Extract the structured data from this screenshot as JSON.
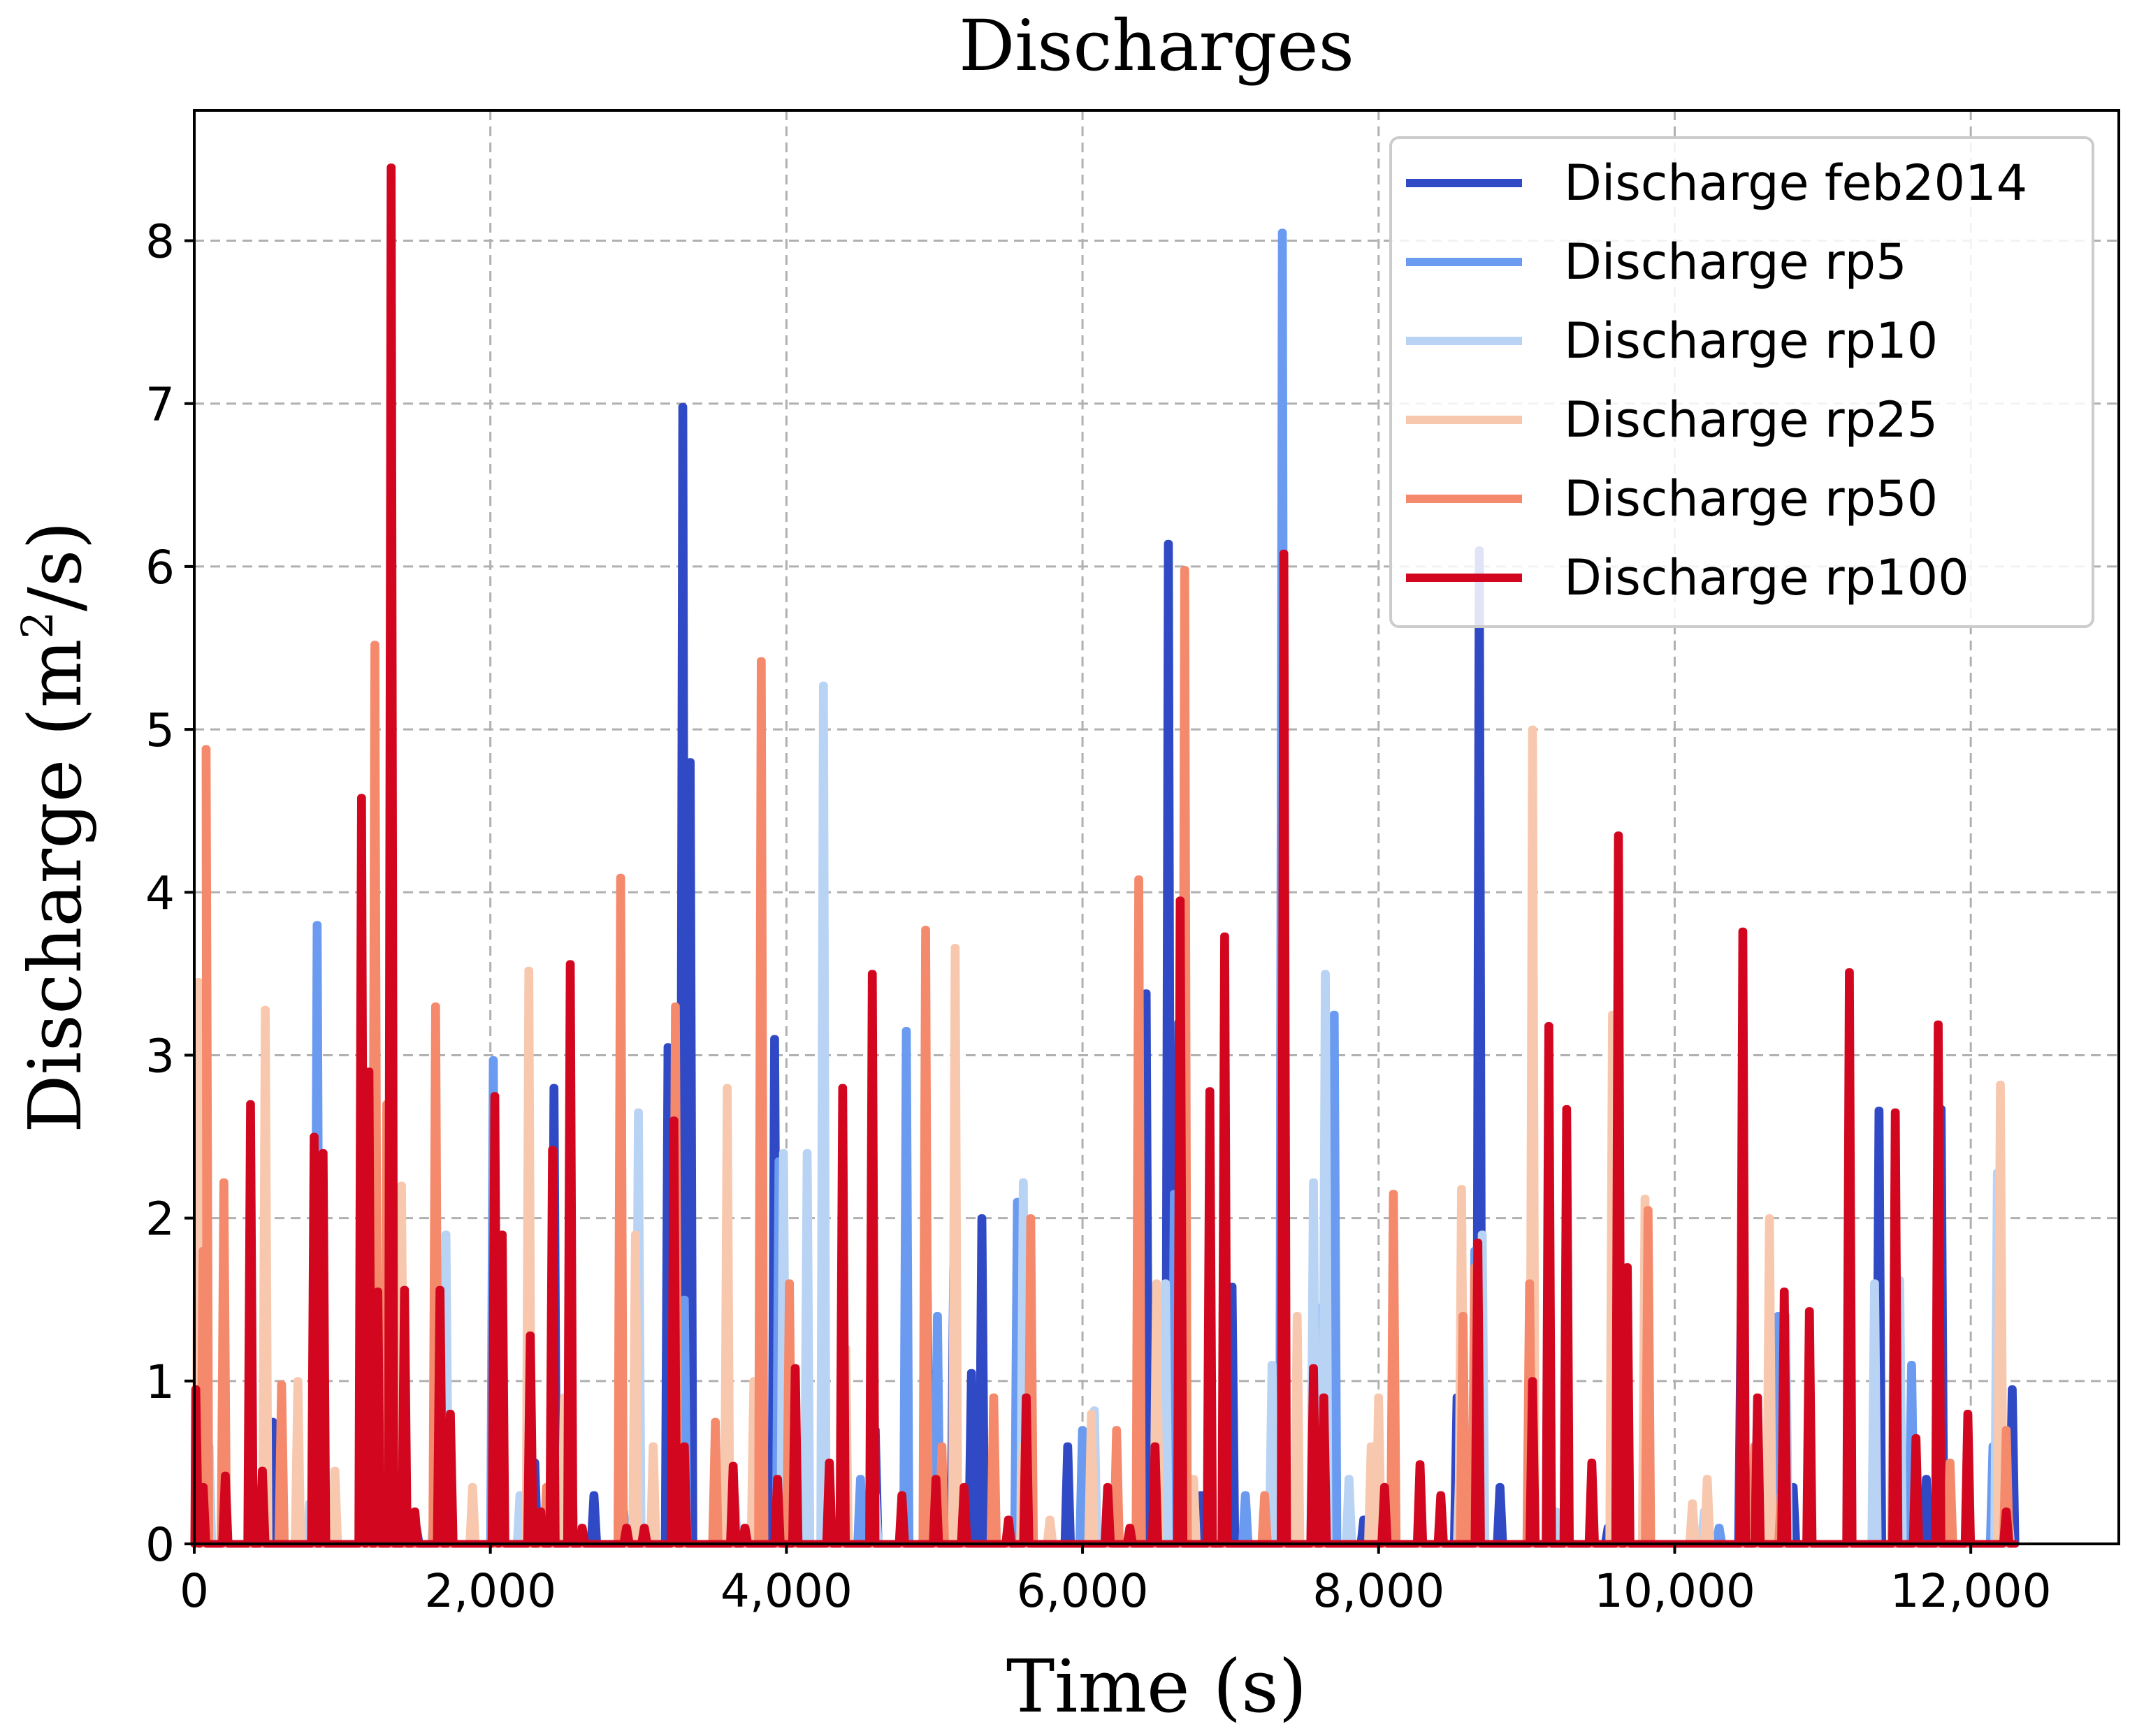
{
  "chart_data": {
    "type": "line",
    "title": "Discharges",
    "xlabel": "Time (s)",
    "ylabel_main": "Discharge (m",
    "ylabel_sup": "2",
    "ylabel_end": "/s)",
    "xlim": [
      0,
      13000
    ],
    "ylim": [
      0,
      8.8
    ],
    "x_ticks": [
      0,
      2000,
      4000,
      6000,
      8000,
      10000,
      12000
    ],
    "x_tick_labels": [
      "0",
      "2,000",
      "4,000",
      "6,000",
      "8,000",
      "10,000",
      "12,000"
    ],
    "y_ticks": [
      0,
      1,
      2,
      3,
      4,
      5,
      6,
      7,
      8
    ],
    "y_tick_labels": [
      "0",
      "1",
      "2",
      "3",
      "4",
      "5",
      "6",
      "7",
      "8"
    ],
    "grid": true,
    "legend_position": "top-right",
    "series": [
      {
        "name": "Discharge feb2014",
        "color": "#3049c4",
        "spikes": [
          [
            20,
            0.35
          ],
          [
            530,
            0.75
          ],
          [
            1130,
            0.35
          ],
          [
            1500,
            0.1
          ],
          [
            2060,
            0.3
          ],
          [
            2300,
            0.5
          ],
          [
            2430,
            2.8
          ],
          [
            2700,
            0.3
          ],
          [
            3000,
            1.05
          ],
          [
            3200,
            3.05
          ],
          [
            3300,
            6.98
          ],
          [
            3350,
            4.8
          ],
          [
            3920,
            3.1
          ],
          [
            4120,
            0.5
          ],
          [
            4600,
            0.7
          ],
          [
            4950,
            1.6
          ],
          [
            5000,
            1.05
          ],
          [
            5130,
            1.7
          ],
          [
            5250,
            1.05
          ],
          [
            5320,
            2.0
          ],
          [
            5630,
            1.3
          ],
          [
            5900,
            0.6
          ],
          [
            6430,
            3.38
          ],
          [
            6580,
            6.14
          ],
          [
            6650,
            3.2
          ],
          [
            6800,
            0.3
          ],
          [
            7010,
            1.58
          ],
          [
            7320,
            0.85
          ],
          [
            7650,
            0.6
          ],
          [
            7900,
            0.15
          ],
          [
            8530,
            0.9
          ],
          [
            8680,
            6.1
          ],
          [
            8820,
            0.35
          ],
          [
            9550,
            0.1
          ],
          [
            10450,
            1.5
          ],
          [
            10800,
            0.35
          ],
          [
            11380,
            2.66
          ],
          [
            11700,
            0.4
          ],
          [
            11800,
            2.67
          ],
          [
            12280,
            0.95
          ]
        ]
      },
      {
        "name": "Discharge rp5",
        "color": "#6a9bf0",
        "spikes": [
          [
            40,
            0.5
          ],
          [
            830,
            3.8
          ],
          [
            1200,
            0.45
          ],
          [
            1350,
            0.3
          ],
          [
            2020,
            2.97
          ],
          [
            2390,
            0.3
          ],
          [
            2900,
            0.2
          ],
          [
            3310,
            1.5
          ],
          [
            3950,
            2.35
          ],
          [
            4500,
            0.4
          ],
          [
            4810,
            3.15
          ],
          [
            5020,
            1.4
          ],
          [
            5560,
            2.1
          ],
          [
            6000,
            0.7
          ],
          [
            6200,
            0.1
          ],
          [
            6620,
            2.15
          ],
          [
            7100,
            0.3
          ],
          [
            7350,
            8.05
          ],
          [
            7600,
            1.45
          ],
          [
            7700,
            3.25
          ],
          [
            8650,
            1.8
          ],
          [
            9600,
            2.2
          ],
          [
            9800,
            0.7
          ],
          [
            10300,
            0.1
          ],
          [
            10700,
            1.4
          ],
          [
            11600,
            1.1
          ],
          [
            12150,
            0.6
          ]
        ]
      },
      {
        "name": "Discharge rp10",
        "color": "#b8d3f4",
        "spikes": [
          [
            100,
            0.6
          ],
          [
            780,
            0.25
          ],
          [
            1620,
            0.2
          ],
          [
            1700,
            1.9
          ],
          [
            2200,
            0.3
          ],
          [
            2550,
            0.4
          ],
          [
            3000,
            2.65
          ],
          [
            3650,
            0.3
          ],
          [
            3980,
            2.4
          ],
          [
            4140,
            2.4
          ],
          [
            4250,
            5.27
          ],
          [
            4600,
            0.3
          ],
          [
            5600,
            2.22
          ],
          [
            6080,
            0.82
          ],
          [
            6560,
            1.6
          ],
          [
            7280,
            1.1
          ],
          [
            7560,
            2.22
          ],
          [
            7640,
            3.5
          ],
          [
            7800,
            0.4
          ],
          [
            8550,
            0.5
          ],
          [
            8700,
            1.9
          ],
          [
            9200,
            0.2
          ],
          [
            10200,
            0.2
          ],
          [
            10750,
            1.4
          ],
          [
            11350,
            1.6
          ],
          [
            11520,
            1.62
          ],
          [
            12180,
            2.28
          ],
          [
            12250,
            0.2
          ]
        ]
      },
      {
        "name": "Discharge rp25",
        "color": "#f8c8ae",
        "spikes": [
          [
            30,
            3.45
          ],
          [
            480,
            3.28
          ],
          [
            700,
            1.0
          ],
          [
            950,
            0.45
          ],
          [
            1400,
            2.2
          ],
          [
            1880,
            0.35
          ],
          [
            2260,
            3.52
          ],
          [
            2500,
            0.9
          ],
          [
            2980,
            1.9
          ],
          [
            3100,
            0.6
          ],
          [
            3600,
            2.8
          ],
          [
            3780,
            1.0
          ],
          [
            4400,
            1.2
          ],
          [
            5140,
            3.66
          ],
          [
            5600,
            0.6
          ],
          [
            5780,
            0.15
          ],
          [
            6060,
            0.8
          ],
          [
            6500,
            1.6
          ],
          [
            6750,
            0.4
          ],
          [
            7450,
            1.4
          ],
          [
            7950,
            0.6
          ],
          [
            8000,
            0.9
          ],
          [
            8560,
            2.18
          ],
          [
            9040,
            5.0
          ],
          [
            9580,
            3.25
          ],
          [
            9800,
            2.12
          ],
          [
            10120,
            0.25
          ],
          [
            10220,
            0.4
          ],
          [
            10640,
            2.0
          ],
          [
            11480,
            1.3
          ],
          [
            12200,
            2.82
          ]
        ]
      },
      {
        "name": "Discharge rp50",
        "color": "#f4896b",
        "spikes": [
          [
            60,
            1.8
          ],
          [
            80,
            4.88
          ],
          [
            200,
            2.22
          ],
          [
            590,
            0.98
          ],
          [
            1140,
            0.8
          ],
          [
            1220,
            5.52
          ],
          [
            1300,
            2.7
          ],
          [
            1630,
            3.3
          ],
          [
            2380,
            0.35
          ],
          [
            2880,
            4.09
          ],
          [
            3250,
            3.3
          ],
          [
            3520,
            0.75
          ],
          [
            3830,
            5.42
          ],
          [
            4020,
            1.6
          ],
          [
            4940,
            3.77
          ],
          [
            5050,
            0.6
          ],
          [
            5400,
            0.9
          ],
          [
            5650,
            2.0
          ],
          [
            6230,
            0.7
          ],
          [
            6380,
            4.08
          ],
          [
            6690,
            5.98
          ],
          [
            7230,
            0.3
          ],
          [
            7580,
            0.3
          ],
          [
            8100,
            2.15
          ],
          [
            8570,
            1.4
          ],
          [
            8650,
            1.7
          ],
          [
            9020,
            1.6
          ],
          [
            9820,
            2.05
          ],
          [
            10540,
            0.6
          ],
          [
            10720,
            0.3
          ],
          [
            11860,
            0.5
          ],
          [
            12240,
            0.7
          ]
        ]
      },
      {
        "name": "Discharge rp100",
        "color": "#d2071f",
        "spikes": [
          [
            10,
            0.95
          ],
          [
            60,
            0.35
          ],
          [
            210,
            0.42
          ],
          [
            380,
            2.7
          ],
          [
            460,
            0.45
          ],
          [
            810,
            2.5
          ],
          [
            870,
            2.4
          ],
          [
            1130,
            4.58
          ],
          [
            1180,
            2.9
          ],
          [
            1240,
            1.55
          ],
          [
            1330,
            8.45
          ],
          [
            1420,
            1.56
          ],
          [
            1490,
            0.2
          ],
          [
            1660,
            1.56
          ],
          [
            1730,
            0.8
          ],
          [
            2030,
            2.75
          ],
          [
            2080,
            1.9
          ],
          [
            2270,
            1.28
          ],
          [
            2340,
            0.2
          ],
          [
            2420,
            2.42
          ],
          [
            2540,
            3.56
          ],
          [
            2620,
            0.1
          ],
          [
            2920,
            0.1
          ],
          [
            3040,
            0.1
          ],
          [
            3240,
            2.6
          ],
          [
            3310,
            0.6
          ],
          [
            3640,
            0.48
          ],
          [
            3720,
            0.1
          ],
          [
            3940,
            0.4
          ],
          [
            4060,
            1.08
          ],
          [
            4290,
            0.5
          ],
          [
            4380,
            2.8
          ],
          [
            4580,
            3.5
          ],
          [
            4780,
            0.3
          ],
          [
            5010,
            0.4
          ],
          [
            5200,
            0.35
          ],
          [
            5500,
            0.15
          ],
          [
            5620,
            0.9
          ],
          [
            6170,
            0.35
          ],
          [
            6320,
            0.1
          ],
          [
            6490,
            0.6
          ],
          [
            6660,
            3.95
          ],
          [
            6860,
            2.78
          ],
          [
            6960,
            3.73
          ],
          [
            7360,
            6.08
          ],
          [
            7560,
            1.08
          ],
          [
            7630,
            0.9
          ],
          [
            8040,
            0.35
          ],
          [
            8280,
            0.49
          ],
          [
            8420,
            0.3
          ],
          [
            8670,
            1.85
          ],
          [
            9040,
            1.0
          ],
          [
            9150,
            3.18
          ],
          [
            9270,
            2.67
          ],
          [
            9440,
            0.5
          ],
          [
            9620,
            4.35
          ],
          [
            9680,
            1.7
          ],
          [
            10460,
            3.76
          ],
          [
            10560,
            0.9
          ],
          [
            10740,
            1.55
          ],
          [
            10910,
            1.43
          ],
          [
            11180,
            3.51
          ],
          [
            11490,
            2.65
          ],
          [
            11630,
            0.65
          ],
          [
            11780,
            3.19
          ],
          [
            11980,
            0.8
          ],
          [
            12240,
            0.2
          ]
        ]
      }
    ]
  }
}
